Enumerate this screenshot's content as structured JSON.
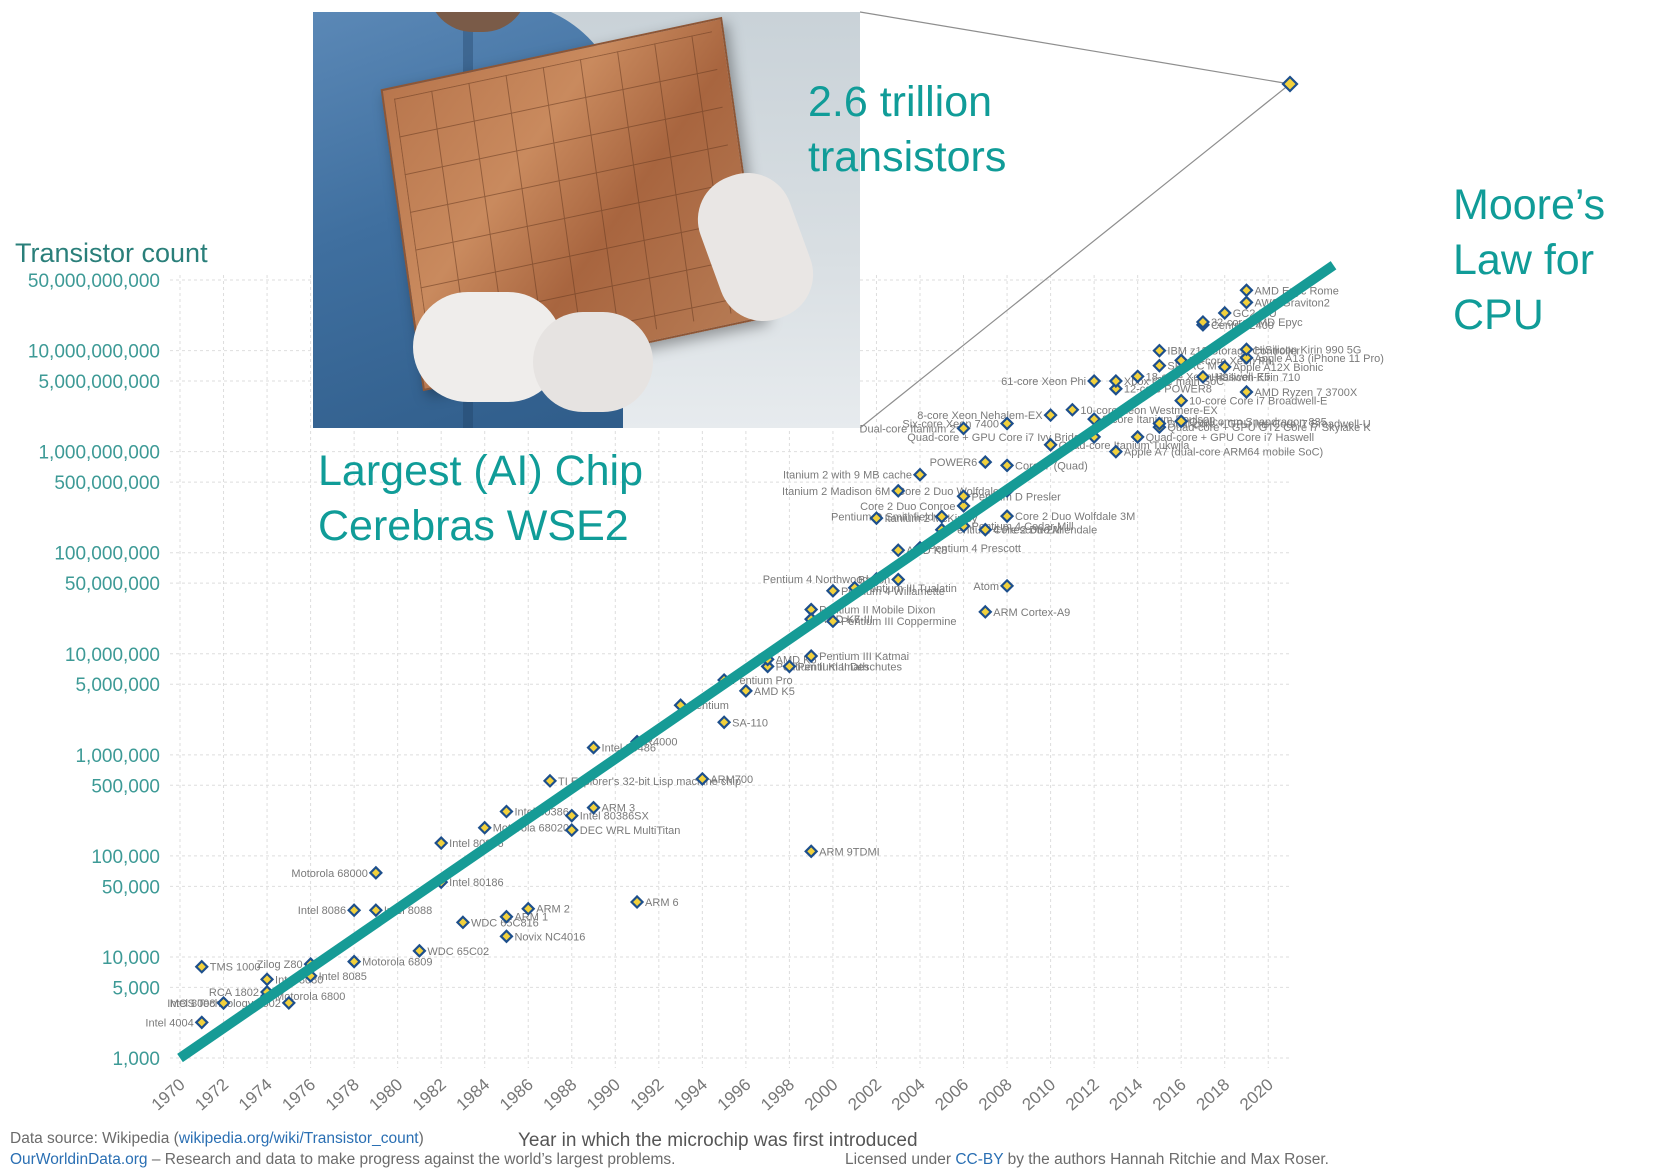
{
  "chart_data": {
    "type": "scatter",
    "ylabel": "Transistor count",
    "xlabel": "Year in which the microchip was first introduced",
    "y_scale": "log",
    "xlim": [
      1970,
      2021
    ],
    "ylim": [
      1000,
      50000000000
    ],
    "y_ticks": [
      {
        "value": 50000000000,
        "label": "50,000,000,000"
      },
      {
        "value": 10000000000,
        "label": "10,000,000,000"
      },
      {
        "value": 5000000000,
        "label": "5,000,000,000"
      },
      {
        "value": 1000000000,
        "label": "1,000,000,000"
      },
      {
        "value": 500000000,
        "label": "500,000,000"
      },
      {
        "value": 100000000,
        "label": "100,000,000"
      },
      {
        "value": 50000000,
        "label": "50,000,000"
      },
      {
        "value": 10000000,
        "label": "10,000,000"
      },
      {
        "value": 5000000,
        "label": "5,000,000"
      },
      {
        "value": 1000000,
        "label": "1,000,000"
      },
      {
        "value": 500000,
        "label": "500,000"
      },
      {
        "value": 100000,
        "label": "100,000"
      },
      {
        "value": 50000,
        "label": "50,000"
      },
      {
        "value": 10000,
        "label": "10,000"
      },
      {
        "value": 5000,
        "label": "5,000"
      },
      {
        "value": 1000,
        "label": "1,000"
      }
    ],
    "x_ticks": [
      "1970",
      "1972",
      "1974",
      "1976",
      "1978",
      "1980",
      "1982",
      "1984",
      "1986",
      "1988",
      "1990",
      "1992",
      "1994",
      "1996",
      "1998",
      "2000",
      "2002",
      "2004",
      "2006",
      "2008",
      "2010",
      "2012",
      "2014",
      "2016",
      "2018",
      "2020"
    ],
    "points": [
      {
        "x": 1971,
        "y": 2250,
        "label": "Intel 4004"
      },
      {
        "x": 1971,
        "y": 8000,
        "label": "TMS 1000"
      },
      {
        "x": 1972,
        "y": 3500,
        "label": "Intel 8008"
      },
      {
        "x": 1974,
        "y": 4100,
        "label": "Motorola 6800"
      },
      {
        "x": 1974,
        "y": 4500,
        "label": "RCA 1802"
      },
      {
        "x": 1974,
        "y": 6000,
        "label": "Intel 8080"
      },
      {
        "x": 1975,
        "y": 3510,
        "label": "MOS Technology 6502"
      },
      {
        "x": 1976,
        "y": 6500,
        "label": "Intel 8085"
      },
      {
        "x": 1976,
        "y": 8500,
        "label": "Zilog Z80"
      },
      {
        "x": 1978,
        "y": 9000,
        "label": "Motorola 6809"
      },
      {
        "x": 1978,
        "y": 29000,
        "label": "Intel 8086"
      },
      {
        "x": 1979,
        "y": 29000,
        "label": "Intel 8088"
      },
      {
        "x": 1979,
        "y": 68000,
        "label": "Motorola 68000"
      },
      {
        "x": 1981,
        "y": 11500,
        "label": "WDC 65C02"
      },
      {
        "x": 1982,
        "y": 55000,
        "label": "Intel 80186"
      },
      {
        "x": 1982,
        "y": 134000,
        "label": "Intel 80286"
      },
      {
        "x": 1983,
        "y": 22000,
        "label": "WDC 65C816"
      },
      {
        "x": 1984,
        "y": 190000,
        "label": "Motorola 68020"
      },
      {
        "x": 1985,
        "y": 16000,
        "label": "Novix NC4016"
      },
      {
        "x": 1985,
        "y": 25000,
        "label": "ARM 1"
      },
      {
        "x": 1985,
        "y": 275000,
        "label": "Intel 80386"
      },
      {
        "x": 1986,
        "y": 30000,
        "label": "ARM 2"
      },
      {
        "x": 1987,
        "y": 553000,
        "label": "TI Explorer's 32-bit Lisp machine chip"
      },
      {
        "x": 1988,
        "y": 250000,
        "label": "Intel 80386SX"
      },
      {
        "x": 1988,
        "y": 180000,
        "label": "DEC WRL MultiTitan"
      },
      {
        "x": 1989,
        "y": 1180000,
        "label": "Intel 80486"
      },
      {
        "x": 1989,
        "y": 300000,
        "label": "ARM 3"
      },
      {
        "x": 1991,
        "y": 35000,
        "label": "ARM 6"
      },
      {
        "x": 1991,
        "y": 1350000,
        "label": "R4000"
      },
      {
        "x": 1993,
        "y": 3100000,
        "label": "Pentium"
      },
      {
        "x": 1994,
        "y": 578000,
        "label": "ARM700"
      },
      {
        "x": 1995,
        "y": 2100000,
        "label": "SA-110"
      },
      {
        "x": 1995,
        "y": 5500000,
        "label": "Pentium Pro"
      },
      {
        "x": 1996,
        "y": 4300000,
        "label": "AMD K5"
      },
      {
        "x": 1997,
        "y": 7500000,
        "label": "Pentium II Klamath"
      },
      {
        "x": 1997,
        "y": 8800000,
        "label": "AMD K6"
      },
      {
        "x": 1998,
        "y": 7500000,
        "label": "Pentium II Deschutes"
      },
      {
        "x": 1999,
        "y": 9500000,
        "label": "Pentium III Katmai"
      },
      {
        "x": 1999,
        "y": 22000000,
        "label": "AMD K6-III"
      },
      {
        "x": 1999,
        "y": 27400000,
        "label": "Pentium II Mobile Dixon"
      },
      {
        "x": 1999,
        "y": 22000000,
        "label": "AMD K7"
      },
      {
        "x": 1999,
        "y": 111000,
        "label": "ARM 9TDMI"
      },
      {
        "x": 2000,
        "y": 21000000,
        "label": "Pentium III Coppermine"
      },
      {
        "x": 2000,
        "y": 42000000,
        "label": "Pentium 4 Willamette"
      },
      {
        "x": 2001,
        "y": 45000000,
        "label": "Pentium III Tualatin"
      },
      {
        "x": 2002,
        "y": 55000000,
        "label": "Pentium 4 Northwood"
      },
      {
        "x": 2002,
        "y": 220000000,
        "label": "Itanium 2 McKinley"
      },
      {
        "x": 2003,
        "y": 54300000,
        "label": "Barton"
      },
      {
        "x": 2003,
        "y": 105900000,
        "label": "AMD K8"
      },
      {
        "x": 2003,
        "y": 410000000,
        "label": "Itanium 2 Madison 6M"
      },
      {
        "x": 2004,
        "y": 112000000,
        "label": "Pentium 4 Prescott"
      },
      {
        "x": 2004,
        "y": 592000000,
        "label": "Itanium 2 with 9 MB cache"
      },
      {
        "x": 2005,
        "y": 169000000,
        "label": "Pentium 4 Prescott-2M"
      },
      {
        "x": 2005,
        "y": 228000000,
        "label": "Pentium D Smithfield"
      },
      {
        "x": 2006,
        "y": 184000000,
        "label": "Pentium 4 Cedar Mill"
      },
      {
        "x": 2006,
        "y": 291000000,
        "label": "Core 2 Duo Conroe"
      },
      {
        "x": 2006,
        "y": 362000000,
        "label": "Pentium D Presler"
      },
      {
        "x": 2006,
        "y": 1700000000,
        "label": "Dual-core Itanium 2"
      },
      {
        "x": 2007,
        "y": 169000000,
        "label": "Core 2 Duo Allendale"
      },
      {
        "x": 2007,
        "y": 789000000,
        "label": "POWER6"
      },
      {
        "x": 2007,
        "y": 26000000,
        "label": "ARM Cortex-A9"
      },
      {
        "x": 2008,
        "y": 47000000,
        "label": "Atom"
      },
      {
        "x": 2008,
        "y": 230000000,
        "label": "Core 2 Duo Wolfdale 3M"
      },
      {
        "x": 2008,
        "y": 410000000,
        "label": "Core 2 Duo Wolfdale"
      },
      {
        "x": 2008,
        "y": 731000000,
        "label": "Core i7 (Quad)"
      },
      {
        "x": 2008,
        "y": 1900000000,
        "label": "Six-core Xeon 7400"
      },
      {
        "x": 2010,
        "y": 1170000000,
        "label": "Quad-core Itanium Tukwila"
      },
      {
        "x": 2010,
        "y": 2300000000,
        "label": "8-core Xeon Nehalem-EX"
      },
      {
        "x": 2011,
        "y": 2600000000,
        "label": "10-core Xeon Westmere-EX"
      },
      {
        "x": 2012,
        "y": 1400000000,
        "label": "Quad-core + GPU Core i7 Ivy Bridge"
      },
      {
        "x": 2012,
        "y": 2100000000,
        "label": "8-core Itanium Poulson"
      },
      {
        "x": 2012,
        "y": 5000000000,
        "label": "61-core Xeon Phi"
      },
      {
        "x": 2013,
        "y": 1000000000,
        "label": "Apple A7 (dual-core ARM64 mobile SoC)"
      },
      {
        "x": 2013,
        "y": 4200000000,
        "label": "12-core POWER8"
      },
      {
        "x": 2013,
        "y": 5000000000,
        "label": "Xbox One main SoC"
      },
      {
        "x": 2014,
        "y": 1400000000,
        "label": "Quad-core + GPU Core i7 Haswell"
      },
      {
        "x": 2014,
        "y": 5560000000,
        "label": "18-core Xeon Haswell-E5"
      },
      {
        "x": 2015,
        "y": 1750000000,
        "label": "Quad-core + GPU GT2 Core i7 Skylake K"
      },
      {
        "x": 2015,
        "y": 1900000000,
        "label": "Dual-core + GPU Iris Core i7 Broadwell-U"
      },
      {
        "x": 2015,
        "y": 7100000000,
        "label": "SPARC M7"
      },
      {
        "x": 2015,
        "y": 10000000000,
        "label": "IBM z13 Storage Controller"
      },
      {
        "x": 2016,
        "y": 2000000000,
        "label": "Qualcomm Snapdragon 835"
      },
      {
        "x": 2016,
        "y": 3200000000,
        "label": "10-core Core i7 Broadwell-E"
      },
      {
        "x": 2016,
        "y": 8000000000,
        "label": "72-core Xeon Phi"
      },
      {
        "x": 2017,
        "y": 5500000000,
        "label": "HiSilicon Kirin 710"
      },
      {
        "x": 2017,
        "y": 18000000000,
        "label": "Centriq 2400"
      },
      {
        "x": 2017,
        "y": 19200000000,
        "label": "32-core AMD Epyc"
      },
      {
        "x": 2018,
        "y": 6900000000,
        "label": "Apple A12X Bionic"
      },
      {
        "x": 2018,
        "y": 23600000000,
        "label": "GC2 IPU"
      },
      {
        "x": 2019,
        "y": 3900000000,
        "label": "AMD Ryzen 7 3700X"
      },
      {
        "x": 2019,
        "y": 8500000000,
        "label": "Apple A13 (iPhone 11 Pro)"
      },
      {
        "x": 2019,
        "y": 10300000000,
        "label": "HiSilicon Kirin 990 5G"
      },
      {
        "x": 2019,
        "y": 30000000000,
        "label": "AWS Graviton2"
      },
      {
        "x": 2019,
        "y": 39540000000,
        "label": "AMD Epyc Rome"
      }
    ],
    "highlight": {
      "x": 2021,
      "y": 2600000000000,
      "label": "Cerebras WSE2"
    },
    "trend": {
      "name": "Moore's Law for CPU",
      "from": {
        "x": 1970,
        "y": 1000
      },
      "to": {
        "x": 2023,
        "y": 70000000000
      }
    }
  },
  "annotations": {
    "wse2_count": [
      "2.6 trillion",
      "transistors"
    ],
    "moores_law": [
      "Moore’s",
      "Law for",
      "CPU"
    ],
    "largest_chip": [
      "Largest (AI) Chip",
      "Cerebras WSE2"
    ]
  },
  "footer": {
    "source_prefix": "Data source: Wikipedia (",
    "source_link": "wikipedia.org/wiki/Transistor_count",
    "source_suffix": ")",
    "owid_link": "OurWorldinData.org",
    "owid_text": " – Research and data to make progress against the world’s largest problems.",
    "license_prefix": "Licensed under ",
    "license_link": "CC-BY",
    "license_suffix": " by the authors Hannah Ritchie and Max Roser."
  },
  "colors": {
    "trend": "#169b96",
    "annotation": "#109c98",
    "marker_fill": "#f2d13c",
    "marker_stroke": "#1d4f8c",
    "grid": "#dedede",
    "axis_text": "#3d9a96"
  }
}
